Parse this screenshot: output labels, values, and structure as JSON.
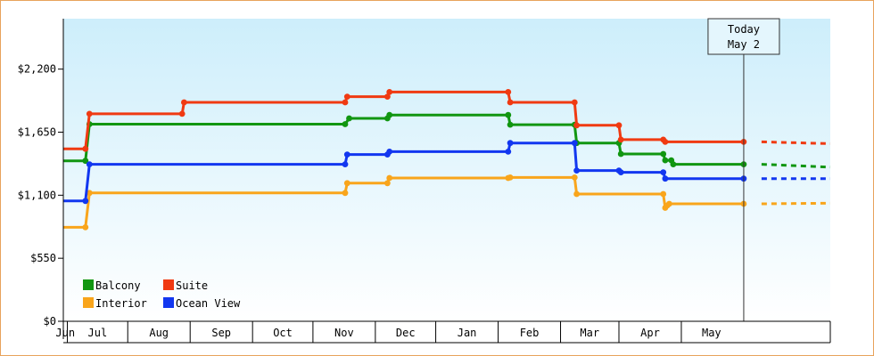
{
  "chart_data": {
    "type": "line",
    "step": true,
    "x_range": [
      "2023-05-30",
      "2024-06-14"
    ],
    "ylim": [
      0,
      2640
    ],
    "y_ticks": [
      0,
      550,
      1100,
      1650,
      2200
    ],
    "y_tick_labels": [
      "$0",
      "$550",
      "$1,100",
      "$1,650",
      "$2,200"
    ],
    "x_tick_labels": [
      "Jun",
      "Jul",
      "Aug",
      "Sep",
      "Oct",
      "Nov",
      "Dec",
      "Jan",
      "Feb",
      "Mar",
      "Apr",
      "May"
    ],
    "today_marker": {
      "label": "Today",
      "date_label": "May 2",
      "date": "2024-05-02"
    },
    "background": {
      "top": "#cdeefb",
      "bottom": "#ffffff"
    },
    "series": [
      {
        "name": "Balcony",
        "color": "#119611",
        "points": [
          [
            "2023-05-30",
            1400
          ],
          [
            "2023-06-10",
            1400
          ],
          [
            "2023-06-12",
            1720
          ],
          [
            "2023-10-17",
            1720
          ],
          [
            "2023-10-19",
            1770
          ],
          [
            "2023-11-07",
            1770
          ],
          [
            "2023-11-08",
            1800
          ],
          [
            "2024-01-06",
            1800
          ],
          [
            "2024-01-07",
            1715
          ],
          [
            "2024-02-08",
            1715
          ],
          [
            "2024-02-09",
            1555
          ],
          [
            "2024-03-01",
            1555
          ],
          [
            "2024-03-02",
            1460
          ],
          [
            "2024-03-23",
            1460
          ],
          [
            "2024-03-24",
            1405
          ],
          [
            "2024-03-27",
            1405
          ],
          [
            "2024-03-28",
            1370
          ],
          [
            "2024-05-02",
            1370
          ]
        ],
        "projection": [
          1370,
          1345
        ]
      },
      {
        "name": "Suite",
        "color": "#f03a12",
        "points": [
          [
            "2023-05-30",
            1505
          ],
          [
            "2023-06-10",
            1505
          ],
          [
            "2023-06-12",
            1810
          ],
          [
            "2023-07-28",
            1810
          ],
          [
            "2023-07-29",
            1910
          ],
          [
            "2023-10-17",
            1910
          ],
          [
            "2023-10-18",
            1960
          ],
          [
            "2023-11-07",
            1960
          ],
          [
            "2023-11-08",
            2000
          ],
          [
            "2024-01-06",
            2000
          ],
          [
            "2024-01-07",
            1910
          ],
          [
            "2024-02-08",
            1910
          ],
          [
            "2024-02-09",
            1710
          ],
          [
            "2024-03-01",
            1710
          ],
          [
            "2024-03-02",
            1585
          ],
          [
            "2024-03-23",
            1585
          ],
          [
            "2024-03-24",
            1565
          ],
          [
            "2024-05-02",
            1565
          ]
        ],
        "projection": [
          1565,
          1550
        ]
      },
      {
        "name": "Interior",
        "color": "#f9a51b",
        "points": [
          [
            "2023-05-30",
            820
          ],
          [
            "2023-06-10",
            820
          ],
          [
            "2023-06-12",
            1120
          ],
          [
            "2023-10-17",
            1120
          ],
          [
            "2023-10-18",
            1205
          ],
          [
            "2023-11-07",
            1205
          ],
          [
            "2023-11-08",
            1250
          ],
          [
            "2024-01-06",
            1250
          ],
          [
            "2024-01-07",
            1255
          ],
          [
            "2024-02-08",
            1255
          ],
          [
            "2024-02-09",
            1110
          ],
          [
            "2024-03-23",
            1110
          ],
          [
            "2024-03-24",
            990
          ],
          [
            "2024-03-25",
            1010
          ],
          [
            "2024-03-26",
            1025
          ],
          [
            "2024-05-02",
            1025
          ]
        ],
        "projection": [
          1025,
          1030
        ]
      },
      {
        "name": "Ocean View",
        "color": "#1237f0",
        "points": [
          [
            "2023-05-30",
            1050
          ],
          [
            "2023-06-10",
            1050
          ],
          [
            "2023-06-12",
            1370
          ],
          [
            "2023-10-17",
            1370
          ],
          [
            "2023-10-18",
            1455
          ],
          [
            "2023-11-07",
            1455
          ],
          [
            "2023-11-08",
            1480
          ],
          [
            "2024-01-06",
            1480
          ],
          [
            "2024-01-07",
            1555
          ],
          [
            "2024-02-08",
            1555
          ],
          [
            "2024-02-09",
            1315
          ],
          [
            "2024-03-01",
            1315
          ],
          [
            "2024-03-02",
            1300
          ],
          [
            "2024-03-23",
            1300
          ],
          [
            "2024-03-24",
            1245
          ],
          [
            "2024-05-02",
            1245
          ]
        ],
        "projection": [
          1245,
          1245
        ]
      }
    ]
  }
}
